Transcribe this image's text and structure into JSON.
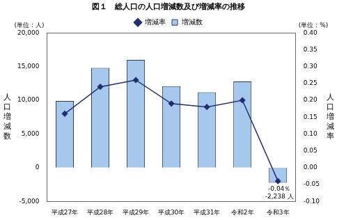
{
  "chart_data": {
    "type": "bar",
    "title": "図１　総人口の人口増減数及び増減率の推移",
    "categories": [
      "平成27年",
      "平成28年",
      "平成29年",
      "平成30年",
      "平成31年",
      "令和2年",
      "令和3年"
    ],
    "series": [
      {
        "name": "増減数",
        "type": "bar",
        "color": "#a6c8ec",
        "values": [
          9900,
          14800,
          16000,
          12100,
          11200,
          12800,
          -2238
        ],
        "data_labels": true,
        "value_labels": [
          null,
          null,
          null,
          null,
          null,
          null,
          "-2,238 人"
        ]
      },
      {
        "name": "増減率",
        "type": "line",
        "color": "#1f2f6f",
        "marker": "diamond",
        "axis": "y2",
        "values": [
          0.16,
          0.24,
          0.26,
          0.19,
          0.18,
          0.2,
          -0.04
        ],
        "data_labels": true,
        "value_labels": [
          null,
          null,
          null,
          null,
          null,
          null,
          "-0.04％"
        ]
      }
    ],
    "y_label": "人口増減数",
    "y2_label": "人口増減率",
    "y_unit": "(単位：人)",
    "y2_unit": "(単位：%)",
    "ylim": [
      -5000,
      20000
    ],
    "yticks": [
      {
        "value": -5000,
        "label": "-5,000"
      },
      0,
      {
        "value": 5000,
        "label": "5,000"
      },
      {
        "value": 10000,
        "label": "10,000"
      },
      {
        "value": 15000,
        "label": "15,000"
      },
      {
        "value": 20000,
        "label": "20,000"
      }
    ],
    "y2lim": [
      -0.1,
      0.4
    ],
    "y2ticks": [
      {
        "value": -0.1,
        "label": "-0.10"
      },
      {
        "value": -0.05,
        "label": "-0.05"
      },
      {
        "value": 0,
        "label": "0.00"
      },
      {
        "value": 0.05,
        "label": "0.05"
      },
      {
        "value": 0.1,
        "label": "0.10"
      },
      {
        "value": 0.15,
        "label": "0.15"
      },
      {
        "value": 0.2,
        "label": "0.20"
      },
      {
        "value": 0.25,
        "label": "0.25"
      },
      {
        "value": 0.3,
        "label": "0.30"
      },
      {
        "value": 0.35,
        "label": "0.35"
      },
      {
        "value": 0.4,
        "label": "0.40"
      }
    ],
    "grid": false,
    "legend": "top"
  }
}
